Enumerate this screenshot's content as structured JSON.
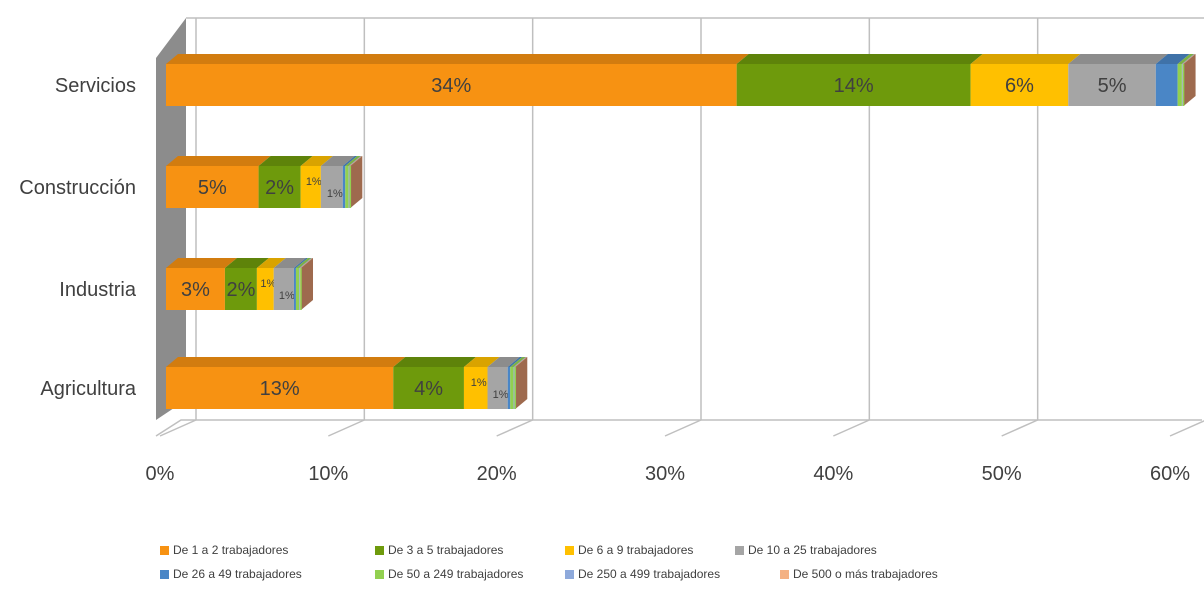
{
  "chart_data": {
    "type": "bar",
    "orientation": "horizontal",
    "stacked": true,
    "three_d": true,
    "categories": [
      "Servicios",
      "Construcción",
      "Industria",
      "Agricultura"
    ],
    "series": [
      {
        "name": "De 1 a 2 trabajadores",
        "color": "#F79212",
        "values": [
          33.9,
          5.5,
          3.5,
          13.5
        ],
        "labels": [
          "34%",
          "5%",
          "3%",
          "13%"
        ]
      },
      {
        "name": "De 3 a 5 trabajadores",
        "color": "#6E9A0C",
        "values": [
          13.9,
          2.5,
          1.9,
          4.2
        ],
        "labels": [
          "14%",
          "2%",
          "2%",
          "4%"
        ]
      },
      {
        "name": "De 6 a 9 trabajadores",
        "color": "#FFC000",
        "values": [
          5.8,
          1.2,
          1.0,
          1.4
        ],
        "labels": [
          "6%",
          "1%",
          "1%",
          "1%"
        ]
      },
      {
        "name": "De 10 a 25 trabajadores",
        "color": "#A5A5A5",
        "values": [
          5.2,
          1.3,
          1.2,
          1.2
        ],
        "labels": [
          "5%",
          "1%",
          "1%",
          "1%"
        ]
      },
      {
        "name": "De 26 a 49 trabajadores",
        "color": "#4A86C6",
        "values": [
          1.3,
          0.15,
          0.12,
          0.15
        ],
        "labels": [
          "",
          "",
          "",
          ""
        ]
      },
      {
        "name": "De 50 a 249 trabajadores",
        "color": "#92D050",
        "values": [
          0.25,
          0.2,
          0.2,
          0.2
        ],
        "labels": [
          "",
          "",
          "",
          ""
        ]
      },
      {
        "name": "De 250 a 499 trabajadores",
        "color": "#8EA9DB",
        "values": [
          0.05,
          0.05,
          0.05,
          0.05
        ],
        "labels": [
          "",
          "",
          "",
          ""
        ]
      },
      {
        "name": "De 500 o más trabajadores",
        "color": "#F4B183",
        "values": [
          0.05,
          0.05,
          0.05,
          0.05
        ],
        "labels": [
          "",
          "",
          "",
          ""
        ]
      }
    ],
    "xlim": [
      0,
      60
    ],
    "xticks": [
      "0%",
      "10%",
      "20%",
      "30%",
      "40%",
      "50%",
      "60%"
    ],
    "grid": true,
    "legend_position": "bottom"
  }
}
